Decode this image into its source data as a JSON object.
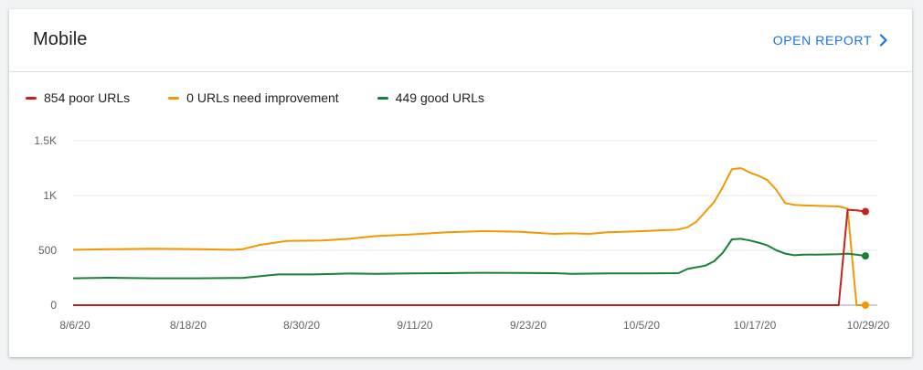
{
  "card": {
    "title": "Mobile",
    "open_report_label": "OPEN REPORT"
  },
  "colors": {
    "accent": "#1a73e8",
    "poor": "#c5221f",
    "needs_improvement": "#f29900",
    "good": "#188038"
  },
  "icons": {
    "open_report": "chevron-right-icon"
  },
  "legend": [
    {
      "label": "854 poor URLs",
      "series": "poor"
    },
    {
      "label": "0 URLs need improvement",
      "series": "needs_improvement"
    },
    {
      "label": "449 good URLs",
      "series": "good"
    }
  ],
  "chart_data": {
    "type": "line",
    "x_tick_labels": [
      "8/6/20",
      "8/18/20",
      "8/30/20",
      "9/11/20",
      "9/23/20",
      "10/5/20",
      "10/17/20",
      "10/29/20"
    ],
    "y_tick_labels": [
      "0",
      "500",
      "1K",
      "1.5K"
    ],
    "y_ticks": [
      0,
      500,
      1000,
      1500
    ],
    "ylim": [
      0,
      1500
    ],
    "x_start": "2020-08-06",
    "x_end": "2020-11-03",
    "grid": true,
    "legend_position": "top-left",
    "series": [
      {
        "key": "needs_improvement",
        "color": "#f29900",
        "points": [
          [
            "2020-08-06",
            505
          ],
          [
            "2020-08-10",
            510
          ],
          [
            "2020-08-15",
            515
          ],
          [
            "2020-08-20",
            510
          ],
          [
            "2020-08-24",
            505
          ],
          [
            "2020-08-25",
            510
          ],
          [
            "2020-08-27",
            550
          ],
          [
            "2020-08-30",
            585
          ],
          [
            "2020-09-03",
            590
          ],
          [
            "2020-09-06",
            605
          ],
          [
            "2020-09-09",
            630
          ],
          [
            "2020-09-13",
            645
          ],
          [
            "2020-09-17",
            665
          ],
          [
            "2020-09-21",
            675
          ],
          [
            "2020-09-25",
            670
          ],
          [
            "2020-09-29",
            650
          ],
          [
            "2020-10-01",
            655
          ],
          [
            "2020-10-03",
            650
          ],
          [
            "2020-10-05",
            665
          ],
          [
            "2020-10-09",
            675
          ],
          [
            "2020-10-13",
            690
          ],
          [
            "2020-10-14",
            710
          ],
          [
            "2020-10-15",
            760
          ],
          [
            "2020-10-16",
            850
          ],
          [
            "2020-10-17",
            940
          ],
          [
            "2020-10-18",
            1080
          ],
          [
            "2020-10-19",
            1240
          ],
          [
            "2020-10-20",
            1250
          ],
          [
            "2020-10-21",
            1210
          ],
          [
            "2020-10-22",
            1180
          ],
          [
            "2020-10-23",
            1140
          ],
          [
            "2020-10-24",
            1050
          ],
          [
            "2020-10-25",
            930
          ],
          [
            "2020-10-26",
            915
          ],
          [
            "2020-10-27",
            910
          ],
          [
            "2020-10-29",
            905
          ],
          [
            "2020-10-31",
            900
          ],
          [
            "2020-11-01",
            880
          ],
          [
            "2020-11-02",
            0
          ],
          [
            "2020-11-03",
            0
          ]
        ]
      },
      {
        "key": "good",
        "color": "#188038",
        "points": [
          [
            "2020-08-06",
            245
          ],
          [
            "2020-08-10",
            250
          ],
          [
            "2020-08-15",
            245
          ],
          [
            "2020-08-20",
            245
          ],
          [
            "2020-08-25",
            248
          ],
          [
            "2020-08-29",
            280
          ],
          [
            "2020-09-02",
            280
          ],
          [
            "2020-09-06",
            288
          ],
          [
            "2020-09-09",
            285
          ],
          [
            "2020-09-13",
            290
          ],
          [
            "2020-09-17",
            292
          ],
          [
            "2020-09-21",
            295
          ],
          [
            "2020-09-25",
            293
          ],
          [
            "2020-09-29",
            292
          ],
          [
            "2020-10-01",
            285
          ],
          [
            "2020-10-05",
            290
          ],
          [
            "2020-10-09",
            290
          ],
          [
            "2020-10-13",
            292
          ],
          [
            "2020-10-14",
            330
          ],
          [
            "2020-10-16",
            360
          ],
          [
            "2020-10-17",
            400
          ],
          [
            "2020-10-18",
            480
          ],
          [
            "2020-10-19",
            600
          ],
          [
            "2020-10-20",
            605
          ],
          [
            "2020-10-21",
            590
          ],
          [
            "2020-10-22",
            570
          ],
          [
            "2020-10-23",
            545
          ],
          [
            "2020-10-24",
            500
          ],
          [
            "2020-10-25",
            470
          ],
          [
            "2020-10-26",
            455
          ],
          [
            "2020-10-27",
            460
          ],
          [
            "2020-10-29",
            462
          ],
          [
            "2020-10-31",
            465
          ],
          [
            "2020-11-01",
            470
          ],
          [
            "2020-11-02",
            460
          ],
          [
            "2020-11-03",
            449
          ]
        ]
      },
      {
        "key": "poor",
        "color": "#c5221f",
        "points": [
          [
            "2020-08-06",
            0
          ],
          [
            "2020-10-31",
            0
          ],
          [
            "2020-11-01",
            870
          ],
          [
            "2020-11-02",
            865
          ],
          [
            "2020-11-03",
            854
          ]
        ]
      }
    ]
  }
}
